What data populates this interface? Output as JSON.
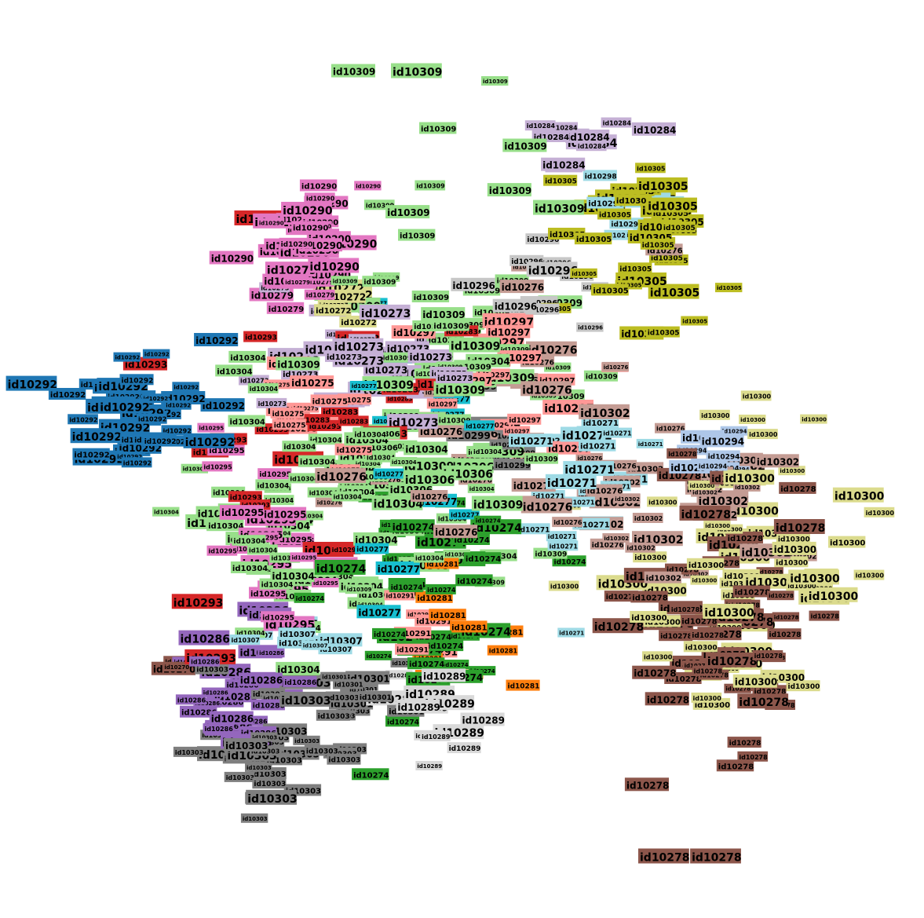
{
  "chart_data": {
    "type": "scatter",
    "title": "",
    "xlabel": "",
    "ylabel": "",
    "grid": false,
    "legend": "none",
    "axes_visible": false,
    "point_style": "colored text label on filled box",
    "label_prefix": "id",
    "note": "Dense 2D embedding (t-SNE style) of labelled points; each point drawn as its id label on a box tinted by class. Cluster centers and extents estimated in data units (0-100 canvas units).",
    "classes": [
      {
        "id": "id10270",
        "color": "#8c564b",
        "cx": 17,
        "cy": 23,
        "sx": 0.8,
        "sy": 0.8,
        "n": 3
      },
      {
        "id": "id10271",
        "color": "#9edae5",
        "cx": 66,
        "cy": 48,
        "sx": 5.0,
        "sy": 6.0,
        "n": 22
      },
      {
        "id": "id10272",
        "color": "#dbdb8d",
        "cx": 36,
        "cy": 71,
        "sx": 2.0,
        "sy": 1.5,
        "n": 6
      },
      {
        "id": "id10273",
        "color": "#c5b0d5",
        "cx": 41,
        "cy": 63,
        "sx": 6.0,
        "sy": 4.0,
        "n": 30
      },
      {
        "id": "id10274",
        "color": "#2ca02c",
        "cx": 47,
        "cy": 31,
        "sx": 5.0,
        "sy": 8.0,
        "n": 40
      },
      {
        "id": "id10275",
        "color": "#ff9896",
        "cx": 33,
        "cy": 58,
        "sx": 3.0,
        "sy": 3.0,
        "n": 14
      },
      {
        "id": "id10276",
        "color": "#c49c94",
        "cx": 55,
        "cy": 53,
        "sx": 9.0,
        "sy": 12.0,
        "n": 30
      },
      {
        "id": "id10277",
        "color": "#17becf",
        "cx": 48,
        "cy": 52,
        "sx": 6.0,
        "sy": 8.0,
        "n": 14
      },
      {
        "id": "id10278",
        "color": "#8c564b",
        "cx": 82,
        "cy": 30,
        "sx": 6.0,
        "sy": 9.0,
        "n": 55
      },
      {
        "id": "id10279",
        "color": "#e377c2",
        "cx": 31,
        "cy": 72,
        "sx": 3.0,
        "sy": 1.5,
        "n": 8
      },
      {
        "id": "id10281",
        "color": "#ff7f0e",
        "cx": 47,
        "cy": 28,
        "sx": 6.0,
        "sy": 6.0,
        "n": 10
      },
      {
        "id": "id10283",
        "color": "#d62728",
        "cx": 45,
        "cy": 60,
        "sx": 5.0,
        "sy": 4.0,
        "n": 12
      },
      {
        "id": "id10284",
        "color": "#c5b0d5",
        "cx": 63,
        "cy": 90,
        "sx": 3.0,
        "sy": 2.5,
        "n": 12
      },
      {
        "id": "id10286",
        "color": "#9467bd",
        "cx": 25,
        "cy": 21,
        "sx": 4.0,
        "sy": 4.0,
        "n": 30
      },
      {
        "id": "id10289",
        "color": "#d9d9d9",
        "cx": 47,
        "cy": 18,
        "sx": 3.0,
        "sy": 2.5,
        "n": 14
      },
      {
        "id": "id10290",
        "color": "#e377c2",
        "cx": 32,
        "cy": 80,
        "sx": 4.0,
        "sy": 3.0,
        "n": 30
      },
      {
        "id": "id10291",
        "color": "#ff9896",
        "cx": 47,
        "cy": 30,
        "sx": 4.0,
        "sy": 3.0,
        "n": 8
      },
      {
        "id": "id10292",
        "color": "#1f77b4",
        "cx": 13,
        "cy": 56,
        "sx": 4.5,
        "sy": 4.0,
        "n": 40
      },
      {
        "id": "id10293",
        "color": "#d62728",
        "cx": 26,
        "cy": 58,
        "sx": 8.0,
        "sy": 10.0,
        "n": 16
      },
      {
        "id": "id10294",
        "color": "#aec7e8",
        "cx": 79,
        "cy": 52,
        "sx": 3.0,
        "sy": 2.0,
        "n": 10
      },
      {
        "id": "id10295",
        "color": "#e377c2",
        "cx": 28,
        "cy": 41,
        "sx": 5.0,
        "sy": 6.0,
        "n": 22
      },
      {
        "id": "id10296",
        "color": "#c7c7c7",
        "cx": 59,
        "cy": 73,
        "sx": 4.0,
        "sy": 3.0,
        "n": 12
      },
      {
        "id": "id10297",
        "color": "#ff9896",
        "cx": 55,
        "cy": 58,
        "sx": 6.0,
        "sy": 6.0,
        "n": 20
      },
      {
        "id": "id10298",
        "color": "#9edae5",
        "cx": 71,
        "cy": 82,
        "sx": 3.0,
        "sy": 3.0,
        "n": 8
      },
      {
        "id": "id10299",
        "color": "#7f7f7f",
        "cx": 55,
        "cy": 54,
        "sx": 3.0,
        "sy": 3.0,
        "n": 8
      },
      {
        "id": "id10300",
        "color": "#dbdb8d",
        "cx": 84,
        "cy": 38,
        "sx": 8.0,
        "sy": 9.0,
        "n": 60
      },
      {
        "id": "id10301",
        "color": "#7f7f7f",
        "cx": 40,
        "cy": 22,
        "sx": 2.5,
        "sy": 2.0,
        "n": 10
      },
      {
        "id": "id10302",
        "color": "#c49c94",
        "cx": 75,
        "cy": 44,
        "sx": 6.0,
        "sy": 6.0,
        "n": 28
      },
      {
        "id": "id10303",
        "color": "#7f7f7f",
        "cx": 29,
        "cy": 13,
        "sx": 4.0,
        "sy": 5.0,
        "n": 40
      },
      {
        "id": "id10304",
        "color": "#98df8a",
        "cx": 34,
        "cy": 45,
        "sx": 9.0,
        "sy": 9.0,
        "n": 70
      },
      {
        "id": "id10305",
        "color": "#bcbd22",
        "cx": 71,
        "cy": 77,
        "sx": 5.0,
        "sy": 7.0,
        "n": 40
      },
      {
        "id": "id10306",
        "color": "#98df8a",
        "cx": 47,
        "cy": 50,
        "sx": 4.0,
        "sy": 4.0,
        "n": 10
      },
      {
        "id": "id10307",
        "color": "#9edae5",
        "cx": 30,
        "cy": 27,
        "sx": 3.0,
        "sy": 2.0,
        "n": 10
      },
      {
        "id": "id10309",
        "color": "#98df8a",
        "cx": 49,
        "cy": 67,
        "sx": 7.0,
        "sy": 14.0,
        "n": 60
      }
    ]
  }
}
